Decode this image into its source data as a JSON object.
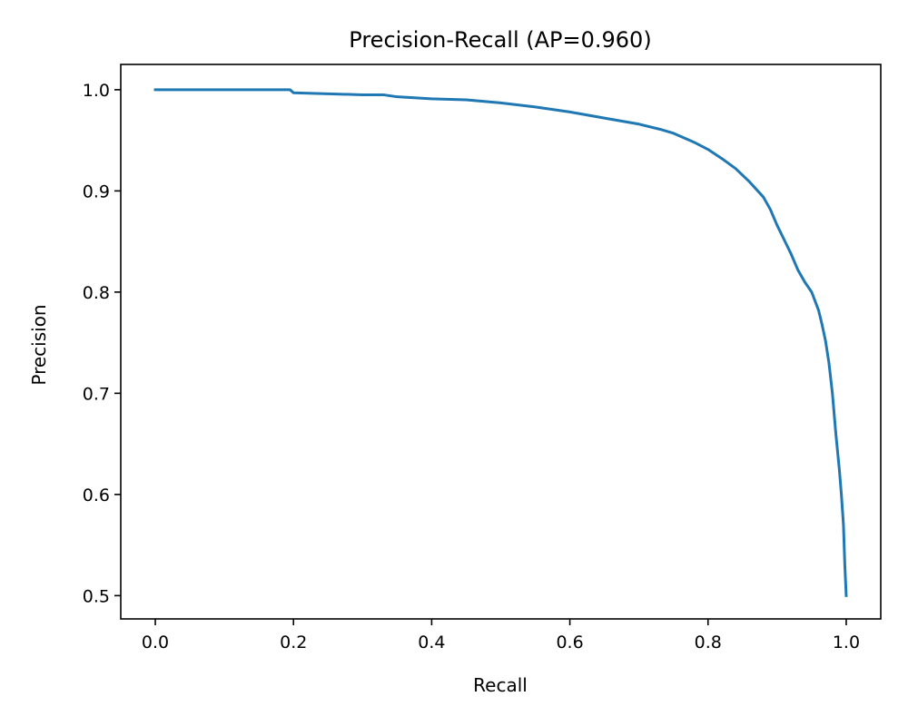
{
  "chart_data": {
    "type": "line",
    "title": "Precision-Recall (AP=0.960)",
    "xlabel": "Recall",
    "ylabel": "Precision",
    "xlim": [
      -0.05,
      1.05
    ],
    "ylim": [
      0.477,
      1.025
    ],
    "x_ticks": [
      0.0,
      0.2,
      0.4,
      0.6,
      0.8,
      1.0
    ],
    "x_tick_labels": [
      "0.0",
      "0.2",
      "0.4",
      "0.6",
      "0.8",
      "1.0"
    ],
    "y_ticks": [
      0.5,
      0.6,
      0.7,
      0.8,
      0.9,
      1.0
    ],
    "y_tick_labels": [
      "0.5",
      "0.6",
      "0.7",
      "0.8",
      "0.9",
      "1.0"
    ],
    "grid": false,
    "legend": "none",
    "series": [
      {
        "color": "#1f77b4",
        "x": [
          0.0,
          0.05,
          0.1,
          0.15,
          0.195,
          0.2,
          0.25,
          0.3,
          0.33,
          0.35,
          0.4,
          0.45,
          0.5,
          0.55,
          0.6,
          0.65,
          0.7,
          0.73,
          0.75,
          0.78,
          0.8,
          0.82,
          0.84,
          0.86,
          0.88,
          0.89,
          0.9,
          0.91,
          0.92,
          0.93,
          0.94,
          0.95,
          0.96,
          0.965,
          0.97,
          0.975,
          0.98,
          0.985,
          0.99,
          0.993,
          0.996,
          0.998,
          1.0
        ],
        "y": [
          1.0,
          1.0,
          1.0,
          1.0,
          1.0,
          0.997,
          0.996,
          0.995,
          0.995,
          0.993,
          0.991,
          0.99,
          0.987,
          0.983,
          0.978,
          0.972,
          0.966,
          0.961,
          0.957,
          0.948,
          0.941,
          0.932,
          0.922,
          0.909,
          0.894,
          0.882,
          0.866,
          0.852,
          0.838,
          0.822,
          0.81,
          0.8,
          0.782,
          0.768,
          0.752,
          0.73,
          0.7,
          0.66,
          0.625,
          0.6,
          0.57,
          0.53,
          0.5
        ]
      }
    ]
  }
}
